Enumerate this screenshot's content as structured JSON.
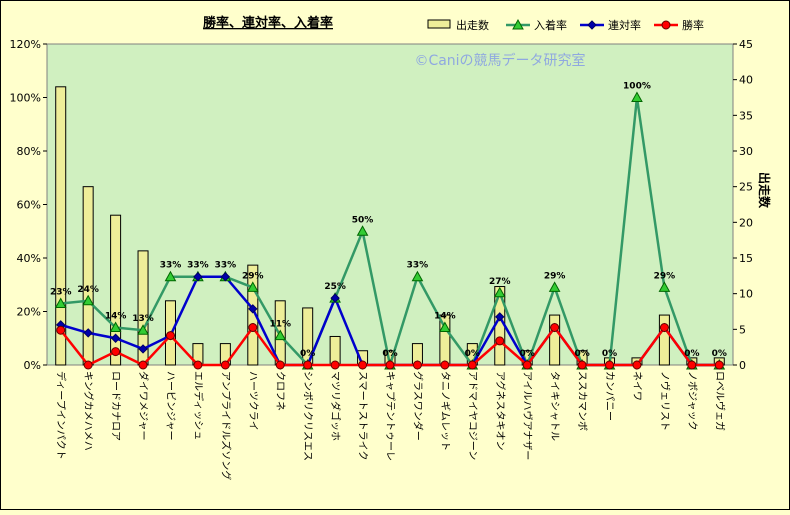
{
  "chart_data": {
    "type": "bar",
    "title": "勝率、連対率、入着率",
    "watermark": "©Caniの競馬データ研究室",
    "categories": [
      "ディープインパクト",
      "キングカメハメハ",
      "ロードカナロア",
      "ダイワメジャー",
      "ハービンジャー",
      "エルディッシュ",
      "アンプライドルズソング",
      "ハーツクライ",
      "クロフネ",
      "シンボリクリスエス",
      "マツリダゴッホ",
      "スマートストライク",
      "キャプテントゥーレ",
      "グラスワンダー",
      "タニノギムレット",
      "アドマイヤコジーン",
      "アグネスタキオン",
      "アイルハヴアナザー",
      "タイキシャトル",
      "ススカマンボ",
      "カンパニー",
      "ネイワ",
      "ノヴェリスト",
      "ノボジャック",
      "ロベルヴェガ"
    ],
    "series": [
      {
        "name": "出走数",
        "type": "bar",
        "axis": "right",
        "color": "#EEEE99",
        "values": [
          39,
          25,
          21,
          16,
          9,
          3,
          3,
          14,
          9,
          8,
          4,
          2,
          2,
          3,
          7,
          3,
          11,
          2,
          7,
          2,
          1,
          1,
          7,
          1,
          1
        ]
      },
      {
        "name": "入着率",
        "type": "line",
        "axis": "left",
        "color": "#339966",
        "marker": "triangle",
        "values": [
          23,
          24,
          14,
          13,
          33,
          33,
          33,
          29,
          11,
          0,
          25,
          50,
          0,
          33,
          14,
          0,
          27,
          0,
          29,
          0,
          0,
          100,
          29,
          0,
          0
        ]
      },
      {
        "name": "連対率",
        "type": "line",
        "axis": "left",
        "color": "#0000CC",
        "marker": "diamond",
        "values": [
          15,
          12,
          10,
          6,
          11,
          33,
          33,
          21,
          0,
          0,
          25,
          0,
          0,
          0,
          0,
          0,
          18,
          0,
          14,
          0,
          0,
          0,
          14,
          0,
          0
        ]
      },
      {
        "name": "勝率",
        "type": "line",
        "axis": "left",
        "color": "#FF0000",
        "marker": "circle",
        "values": [
          13,
          0,
          5,
          0,
          11,
          0,
          0,
          14,
          0,
          0,
          0,
          0,
          0,
          0,
          0,
          0,
          9,
          0,
          14,
          0,
          0,
          0,
          14,
          0,
          0
        ]
      }
    ],
    "data_labels": [
      "23%",
      "24%",
      "14%",
      "13%",
      "33%",
      "33%",
      "33%",
      "29%",
      "11%",
      "0%",
      "25%",
      "50%",
      "0%",
      "33%",
      "14%",
      "0%",
      "27%",
      "0%",
      "29%",
      "0%",
      "0%",
      "100%",
      "29%",
      "0%",
      "0%"
    ],
    "y_left": {
      "min": 0,
      "max": 120,
      "step": 20,
      "ticks": [
        "0%",
        "20%",
        "40%",
        "60%",
        "80%",
        "100%",
        "120%"
      ]
    },
    "y_right": {
      "min": 0,
      "max": 45,
      "step": 5,
      "ticks": [
        "0",
        "5",
        "10",
        "15",
        "20",
        "25",
        "30",
        "35",
        "40",
        "45"
      ],
      "label": "出走数"
    },
    "legend_position": "top-right",
    "grid": false
  }
}
